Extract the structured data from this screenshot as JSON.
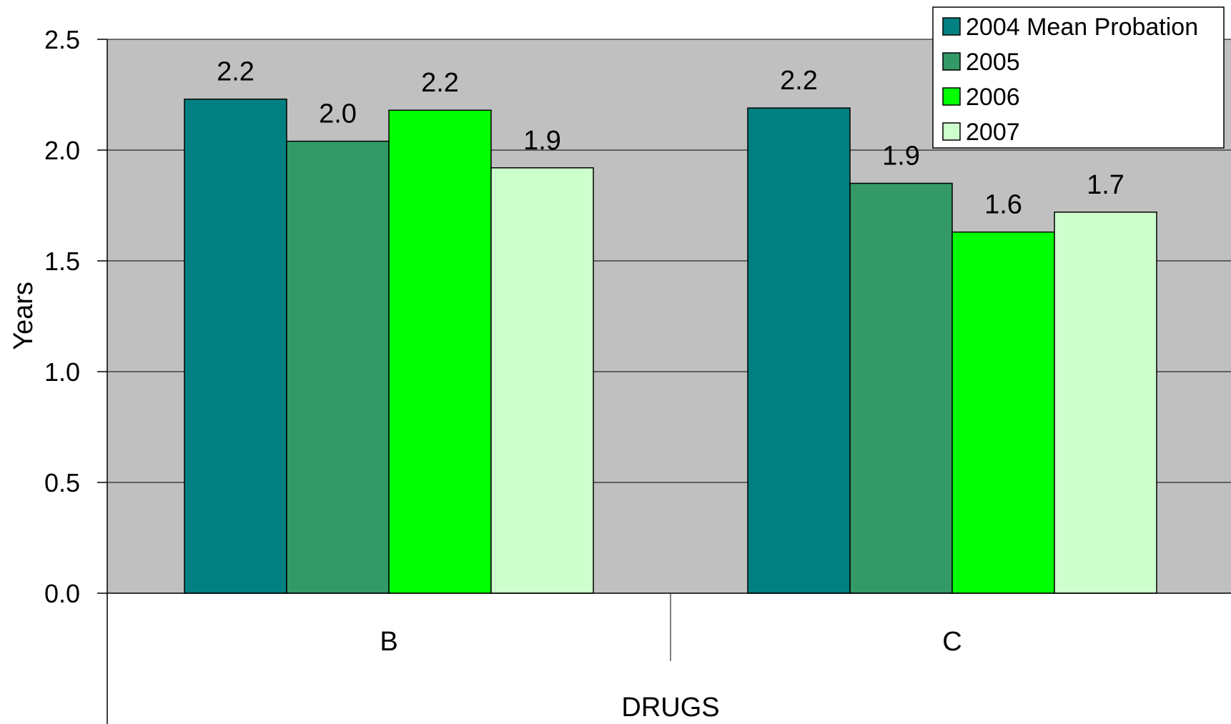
{
  "chart_data": {
    "type": "bar",
    "title": "",
    "ylabel": "Years",
    "xlabel": "DRUGS",
    "ylim": [
      0,
      2.5
    ],
    "yticks": [
      "0.0",
      "0.5",
      "1.0",
      "1.5",
      "2.0",
      "2.5"
    ],
    "categories": [
      "B",
      "C"
    ],
    "series": [
      {
        "name": "2004 Mean Probation",
        "values": [
          2.23,
          2.19
        ],
        "labels": [
          "2.2",
          "2.2"
        ],
        "color": "#008080"
      },
      {
        "name": "2005",
        "values": [
          2.04,
          1.85
        ],
        "labels": [
          "2.0",
          "1.9"
        ],
        "color": "#339966"
      },
      {
        "name": "2006",
        "values": [
          2.18,
          1.63
        ],
        "labels": [
          "2.2",
          "1.6"
        ],
        "color": "#00ff00"
      },
      {
        "name": "2007",
        "values": [
          1.92,
          1.72
        ],
        "labels": [
          "1.9",
          "1.7"
        ],
        "color": "#ccffcc"
      }
    ],
    "grid": true,
    "plot_background": "#c0c0c0",
    "legend": "top-right"
  }
}
